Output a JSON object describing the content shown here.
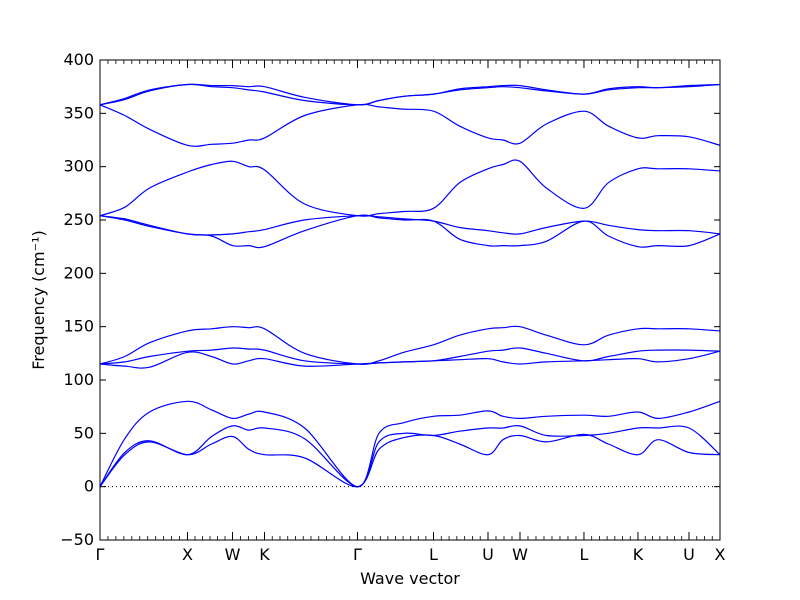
{
  "chart_data": {
    "type": "line",
    "xlabel": "Wave vector",
    "ylabel": "Frequency (cm⁻¹)",
    "ylim": [
      -50,
      400
    ],
    "yticks": [
      -50,
      0,
      50,
      100,
      150,
      200,
      250,
      300,
      350,
      400
    ],
    "grid": false,
    "zero_line": {
      "y": 0,
      "style": "dotted"
    },
    "line_color": "#0000ff",
    "high_symmetry_points": [
      {
        "label": "Γ",
        "x": 0.0
      },
      {
        "label": "X",
        "x": 0.1411
      },
      {
        "label": "W",
        "x": 0.2137
      },
      {
        "label": "K",
        "x": 0.2653
      },
      {
        "label": "Γ",
        "x": 0.4153
      },
      {
        "label": "L",
        "x": 0.5379
      },
      {
        "label": "U",
        "x": 0.6258
      },
      {
        "label": "W",
        "x": 0.6774
      },
      {
        "label": "L",
        "x": 0.7806
      },
      {
        "label": "K",
        "x": 0.8677
      },
      {
        "label": "U",
        "x": 0.95
      },
      {
        "label": "X",
        "x": 1.0
      }
    ],
    "series": [
      {
        "x": [
          0,
          0.04,
          0.08,
          0.1411,
          0.18,
          0.2137,
          0.24,
          0.2653,
          0.33,
          0.4153,
          0.45,
          0.49,
          0.5379,
          0.58,
          0.6258,
          0.65,
          0.6774,
          0.72,
          0.7806,
          0.82,
          0.8677,
          0.9,
          0.95,
          1.0
        ],
        "y": [
          0,
          30,
          42,
          30,
          40,
          47,
          35,
          30,
          27,
          0,
          35,
          46,
          48,
          40,
          30,
          44,
          48,
          42,
          49,
          40,
          30,
          44,
          32,
          30
        ]
      },
      {
        "x": [
          0,
          0.04,
          0.08,
          0.1411,
          0.18,
          0.2137,
          0.24,
          0.2653,
          0.33,
          0.4153,
          0.45,
          0.49,
          0.5379,
          0.58,
          0.6258,
          0.65,
          0.6774,
          0.72,
          0.7806,
          0.82,
          0.8677,
          0.9,
          0.95,
          1.0
        ],
        "y": [
          0,
          32,
          43,
          30,
          47,
          57,
          53,
          55,
          45,
          0,
          42,
          50,
          48,
          52,
          55,
          55,
          57,
          48,
          48,
          50,
          55,
          55,
          55,
          30
        ]
      },
      {
        "x": [
          0,
          0.04,
          0.08,
          0.1411,
          0.18,
          0.2137,
          0.24,
          0.2653,
          0.33,
          0.4153,
          0.45,
          0.49,
          0.5379,
          0.58,
          0.6258,
          0.65,
          0.6774,
          0.72,
          0.7806,
          0.82,
          0.8677,
          0.9,
          0.95,
          1.0
        ],
        "y": [
          0,
          45,
          70,
          80,
          72,
          64,
          68,
          70,
          55,
          0,
          50,
          60,
          66,
          67,
          71,
          66,
          64,
          66,
          67,
          66,
          70,
          64,
          70,
          80
        ]
      },
      {
        "x": [
          0,
          0.04,
          0.08,
          0.1411,
          0.18,
          0.2137,
          0.24,
          0.2653,
          0.33,
          0.4153,
          0.45,
          0.49,
          0.5379,
          0.58,
          0.6258,
          0.65,
          0.6774,
          0.72,
          0.7806,
          0.82,
          0.8677,
          0.9,
          0.95,
          1.0
        ],
        "y": [
          115,
          113,
          112,
          126,
          122,
          115,
          118,
          120,
          113,
          115,
          116,
          117,
          118,
          119,
          120,
          117,
          115,
          117,
          118,
          119,
          120,
          117,
          120,
          127
        ]
      },
      {
        "x": [
          0,
          0.04,
          0.08,
          0.1411,
          0.18,
          0.2137,
          0.24,
          0.2653,
          0.33,
          0.4153,
          0.45,
          0.49,
          0.5379,
          0.58,
          0.6258,
          0.65,
          0.6774,
          0.72,
          0.7806,
          0.82,
          0.8677,
          0.9,
          0.95,
          1.0
        ],
        "y": [
          115,
          117,
          122,
          127,
          128,
          130,
          129,
          128,
          118,
          115,
          116,
          117,
          118,
          122,
          127,
          128,
          130,
          125,
          118,
          122,
          127,
          128,
          128,
          127
        ]
      },
      {
        "x": [
          0,
          0.04,
          0.08,
          0.1411,
          0.18,
          0.2137,
          0.24,
          0.2653,
          0.33,
          0.4153,
          0.45,
          0.49,
          0.5379,
          0.58,
          0.6258,
          0.65,
          0.6774,
          0.72,
          0.7806,
          0.82,
          0.8677,
          0.9,
          0.95,
          1.0
        ],
        "y": [
          115,
          122,
          135,
          146,
          148,
          150,
          149,
          148,
          125,
          115,
          118,
          126,
          133,
          142,
          148,
          149,
          150,
          142,
          133,
          142,
          148,
          148,
          148,
          146
        ]
      },
      {
        "x": [
          0,
          0.04,
          0.08,
          0.1411,
          0.18,
          0.2137,
          0.24,
          0.2653,
          0.33,
          0.4153,
          0.45,
          0.49,
          0.5379,
          0.58,
          0.6258,
          0.65,
          0.6774,
          0.72,
          0.7806,
          0.82,
          0.8677,
          0.9,
          0.95,
          1.0
        ],
        "y": [
          254,
          250,
          244,
          237,
          235,
          226,
          226,
          225,
          240,
          254,
          252,
          250,
          249,
          232,
          226,
          226,
          226,
          230,
          249,
          235,
          225,
          226,
          226,
          237
        ]
      },
      {
        "x": [
          0,
          0.04,
          0.08,
          0.1411,
          0.18,
          0.2137,
          0.24,
          0.2653,
          0.33,
          0.4153,
          0.45,
          0.49,
          0.5379,
          0.58,
          0.6258,
          0.65,
          0.6774,
          0.72,
          0.7806,
          0.82,
          0.8677,
          0.9,
          0.95,
          1.0
        ],
        "y": [
          254,
          251,
          245,
          237,
          236,
          237,
          239,
          241,
          250,
          254,
          253,
          251,
          249,
          243,
          240,
          238,
          237,
          243,
          249,
          245,
          241,
          240,
          240,
          237
        ]
      },
      {
        "x": [
          0,
          0.04,
          0.08,
          0.1411,
          0.18,
          0.2137,
          0.24,
          0.2653,
          0.33,
          0.4153,
          0.45,
          0.49,
          0.5379,
          0.58,
          0.6258,
          0.65,
          0.6774,
          0.72,
          0.7806,
          0.82,
          0.8677,
          0.9,
          0.95,
          1.0
        ],
        "y": [
          254,
          262,
          280,
          295,
          302,
          305,
          300,
          297,
          265,
          254,
          256,
          258,
          261,
          285,
          298,
          302,
          305,
          280,
          261,
          285,
          298,
          298,
          298,
          296
        ]
      },
      {
        "x": [
          0,
          0.04,
          0.08,
          0.1411,
          0.18,
          0.2137,
          0.24,
          0.2653,
          0.33,
          0.4153,
          0.45,
          0.49,
          0.5379,
          0.58,
          0.6258,
          0.65,
          0.6774,
          0.72,
          0.7806,
          0.82,
          0.8677,
          0.9,
          0.95,
          1.0
        ],
        "y": [
          358,
          348,
          335,
          320,
          321,
          322,
          325,
          327,
          348,
          358,
          356,
          354,
          352,
          338,
          327,
          325,
          322,
          340,
          352,
          338,
          327,
          329,
          328,
          320
        ]
      },
      {
        "x": [
          0,
          0.04,
          0.08,
          0.1411,
          0.18,
          0.2137,
          0.24,
          0.2653,
          0.33,
          0.4153,
          0.45,
          0.49,
          0.5379,
          0.58,
          0.6258,
          0.65,
          0.6774,
          0.72,
          0.7806,
          0.82,
          0.8677,
          0.9,
          0.95,
          1.0
        ],
        "y": [
          358,
          363,
          371,
          377,
          375,
          374,
          372,
          370,
          362,
          358,
          362,
          366,
          368,
          372,
          374,
          375,
          374,
          371,
          368,
          372,
          374,
          374,
          375,
          377
        ]
      },
      {
        "x": [
          0,
          0.04,
          0.08,
          0.1411,
          0.18,
          0.2137,
          0.24,
          0.2653,
          0.33,
          0.4153,
          0.45,
          0.49,
          0.5379,
          0.58,
          0.6258,
          0.65,
          0.6774,
          0.72,
          0.7806,
          0.82,
          0.8677,
          0.9,
          0.95,
          1.0
        ],
        "y": [
          358,
          364,
          372,
          377,
          376,
          376,
          375,
          375,
          365,
          358,
          362,
          366,
          368,
          373,
          375,
          376,
          376,
          372,
          368,
          373,
          375,
          374,
          376,
          377
        ]
      }
    ]
  }
}
